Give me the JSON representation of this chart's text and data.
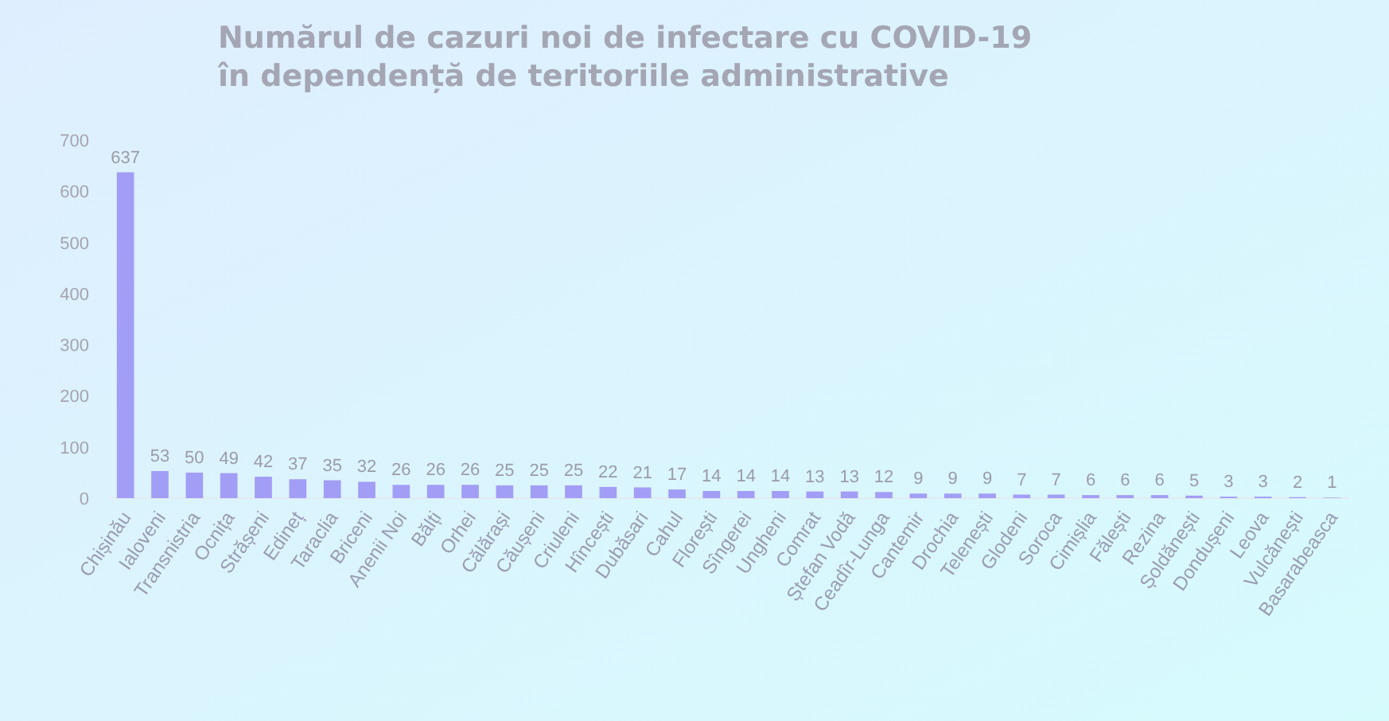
{
  "chart_data": {
    "type": "bar",
    "title": "Numărul de cazuri noi de infectare cu COVID-19\nîn dependență de teritoriile administrative",
    "categories": [
      "Chișinău",
      "Ialoveni",
      "Transnistria",
      "Ocnița",
      "Strășeni",
      "Edineț",
      "Taraclia",
      "Briceni",
      "Anenii Noi",
      "Bălți",
      "Orhei",
      "Călărași",
      "Căușeni",
      "Criuleni",
      "Hîncești",
      "Dubăsari",
      "Cahul",
      "Florești",
      "Sîngerei",
      "Ungheni",
      "Comrat",
      "Ștefan Vodă",
      "Ceadîr-Lunga",
      "Cantemir",
      "Drochia",
      "Telenești",
      "Glodeni",
      "Soroca",
      "Cimișlia",
      "Fălești",
      "Rezina",
      "Șoldănești",
      "Dondușeni",
      "Leova",
      "Vulcănești",
      "Basarabeasca"
    ],
    "values": [
      637,
      53,
      50,
      49,
      42,
      37,
      35,
      32,
      26,
      26,
      26,
      25,
      25,
      25,
      22,
      21,
      17,
      14,
      14,
      14,
      13,
      13,
      12,
      9,
      9,
      9,
      7,
      7,
      6,
      6,
      6,
      5,
      3,
      3,
      2,
      1
    ],
    "color": "#a29df5",
    "ylim": [
      0,
      700
    ],
    "yticks": [
      0,
      100,
      200,
      300,
      400,
      500,
      600,
      700
    ],
    "data_labels": true,
    "grid": false
  }
}
